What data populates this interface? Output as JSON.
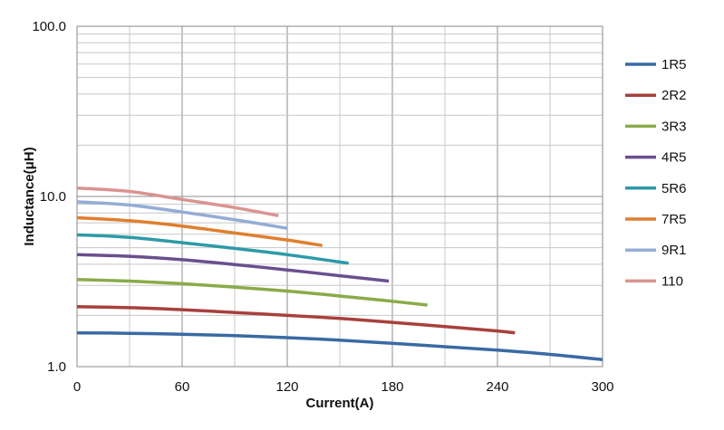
{
  "chart_data": {
    "type": "line",
    "xlabel": "Current(A)",
    "ylabel": "Inductance(μH)",
    "xlim": [
      0,
      300
    ],
    "ylim": [
      1.0,
      100.0
    ],
    "yscale": "log",
    "grid": true,
    "legend_position": "right",
    "x_ticks": [
      "0",
      "60",
      "120",
      "180",
      "240",
      "300"
    ],
    "y_ticks": [
      "1.0",
      "10.0",
      "100.0"
    ],
    "series": [
      {
        "name": "1R5",
        "color": "#3a6aa4",
        "x": [
          0,
          30,
          60,
          90,
          120,
          150,
          180,
          210,
          240,
          270,
          300
        ],
        "y": [
          1.58,
          1.57,
          1.55,
          1.52,
          1.48,
          1.43,
          1.37,
          1.31,
          1.25,
          1.18,
          1.1
        ]
      },
      {
        "name": "2R2",
        "color": "#a8403c",
        "x": [
          0,
          30,
          60,
          90,
          120,
          150,
          180,
          210,
          240,
          250
        ],
        "y": [
          2.25,
          2.22,
          2.16,
          2.08,
          2.0,
          1.92,
          1.82,
          1.72,
          1.62,
          1.58
        ]
      },
      {
        "name": "3R3",
        "color": "#8aab4a",
        "x": [
          0,
          30,
          60,
          90,
          120,
          150,
          180,
          200
        ],
        "y": [
          3.25,
          3.18,
          3.07,
          2.93,
          2.78,
          2.6,
          2.42,
          2.3
        ]
      },
      {
        "name": "4R5",
        "color": "#6a4f8e",
        "x": [
          0,
          30,
          60,
          90,
          120,
          150,
          178
        ],
        "y": [
          4.55,
          4.45,
          4.25,
          3.98,
          3.7,
          3.42,
          3.18
        ]
      },
      {
        "name": "5R6",
        "color": "#2e9aa8",
        "x": [
          0,
          30,
          60,
          90,
          120,
          155
        ],
        "y": [
          5.95,
          5.75,
          5.35,
          4.95,
          4.55,
          4.05
        ]
      },
      {
        "name": "7R5",
        "color": "#e07f2e",
        "x": [
          0,
          30,
          60,
          90,
          120,
          140
        ],
        "y": [
          7.5,
          7.2,
          6.7,
          6.1,
          5.55,
          5.15
        ]
      },
      {
        "name": "9R1",
        "color": "#94acd6",
        "x": [
          0,
          30,
          60,
          90,
          120
        ],
        "y": [
          9.3,
          8.9,
          8.1,
          7.3,
          6.5
        ]
      },
      {
        "name": "110",
        "color": "#d99490",
        "x": [
          0,
          30,
          60,
          90,
          115
        ],
        "y": [
          11.2,
          10.7,
          9.6,
          8.6,
          7.7
        ]
      }
    ]
  }
}
